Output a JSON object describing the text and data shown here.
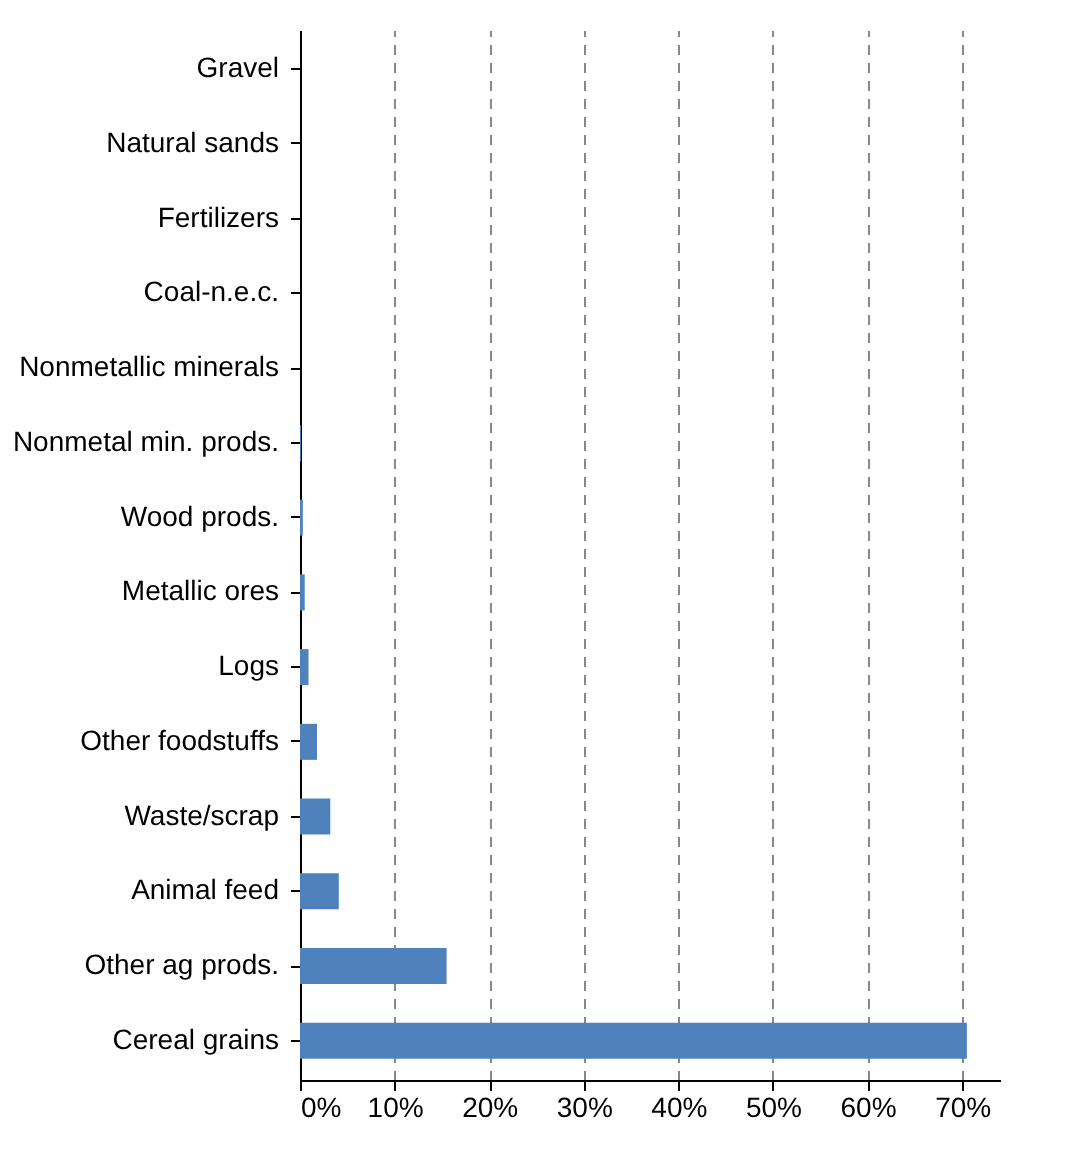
{
  "chart_data": {
    "type": "bar",
    "orientation": "horizontal",
    "categories": [
      "Gravel",
      "Natural sands",
      "Fertilizers",
      "Coal-n.e.c.",
      "Nonmetallic minerals",
      "Nonmetal min. prods.",
      "Wood prods.",
      "Metallic ores",
      "Logs",
      "Other foodstuffs",
      "Waste/scrap",
      "Animal feed",
      "Other ag prods.",
      "Cereal grains"
    ],
    "values": [
      0,
      0,
      0,
      0,
      0,
      0.1,
      0.3,
      0.5,
      0.9,
      1.8,
      3.2,
      4.1,
      15.5,
      70.5
    ],
    "color": "#4f81bd",
    "xlim": [
      0,
      74
    ],
    "xticks": [
      {
        "value": 0,
        "label": "0%"
      },
      {
        "value": 10,
        "label": "10%"
      },
      {
        "value": 20,
        "label": "20%"
      },
      {
        "value": 30,
        "label": "30%"
      },
      {
        "value": 40,
        "label": "40%"
      },
      {
        "value": 50,
        "label": "50%"
      },
      {
        "value": 60,
        "label": "60%"
      },
      {
        "value": 70,
        "label": "70%"
      }
    ],
    "grid": "x"
  }
}
